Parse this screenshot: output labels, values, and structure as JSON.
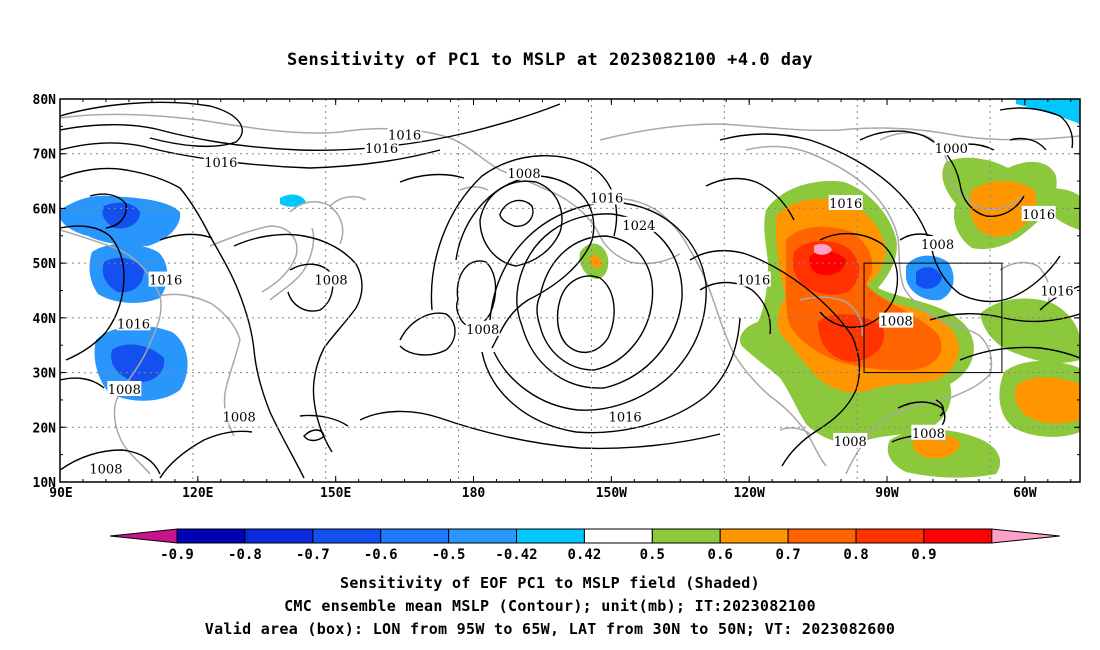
{
  "title": "Sensitivity of PC1 to MSLP at 2023082100 +4.0 day",
  "map": {
    "lon_labels": [
      "90E",
      "120E",
      "150E",
      "180",
      "150W",
      "120W",
      "90W",
      "60W"
    ],
    "lat_labels": [
      "80N",
      "70N",
      "60N",
      "50N",
      "40N",
      "30N",
      "20N",
      "10N"
    ],
    "extent": {
      "lon_min": 90,
      "lon_max": 312,
      "lat_min": 10,
      "lat_max": 80
    },
    "valid_box": {
      "lon_min": 265,
      "lon_max": 295,
      "lat_min": 30,
      "lat_max": 50
    },
    "contour_labels": [
      {
        "text": "1016",
        "lon": 165,
        "lat": 73.5
      },
      {
        "text": "1016",
        "lon": 160,
        "lat": 71.0
      },
      {
        "text": "1016",
        "lon": 125,
        "lat": 68.5
      },
      {
        "text": "1008",
        "lon": 191,
        "lat": 66.5
      },
      {
        "text": "1016",
        "lon": 209,
        "lat": 62.0
      },
      {
        "text": "1024",
        "lon": 216,
        "lat": 57.0
      },
      {
        "text": "1016",
        "lon": 113,
        "lat": 47.0
      },
      {
        "text": "1008",
        "lon": 149,
        "lat": 47.0
      },
      {
        "text": "1016",
        "lon": 241,
        "lat": 47.0
      },
      {
        "text": "1016",
        "lon": 261,
        "lat": 61.0
      },
      {
        "text": "1008",
        "lon": 281,
        "lat": 53.5
      },
      {
        "text": "1000",
        "lon": 284,
        "lat": 71.0
      },
      {
        "text": "1016",
        "lon": 303,
        "lat": 59.0
      },
      {
        "text": "1016",
        "lon": 106,
        "lat": 39.0
      },
      {
        "text": "1008",
        "lon": 182,
        "lat": 38.0
      },
      {
        "text": "1008",
        "lon": 272,
        "lat": 39.5
      },
      {
        "text": "1016",
        "lon": 307,
        "lat": 45.0
      },
      {
        "text": "1008",
        "lon": 104,
        "lat": 27.0
      },
      {
        "text": "1008",
        "lon": 129,
        "lat": 22.0
      },
      {
        "text": "1016",
        "lon": 213,
        "lat": 22.0
      },
      {
        "text": "1008",
        "lon": 262,
        "lat": 17.5
      },
      {
        "text": "1008",
        "lon": 279,
        "lat": 19.0
      },
      {
        "text": "1008",
        "lon": 100,
        "lat": 12.5
      }
    ]
  },
  "colorbar": {
    "labels": [
      "-0.9",
      "-0.8",
      "-0.7",
      "-0.6",
      "-0.5",
      "-0.42",
      "0.42",
      "0.5",
      "0.6",
      "0.7",
      "0.8",
      "0.9"
    ],
    "colors": [
      "#0000b4",
      "#0a28dc",
      "#1450f0",
      "#1e78fa",
      "#2896fa",
      "#00c8ff",
      "#ffffff",
      "#8cc83c",
      "#ff9600",
      "#ff6400",
      "#ff3200",
      "#ff0000"
    ],
    "low_extend_color": "#c8148c",
    "high_extend_color": "#ffa0c8"
  },
  "captions": [
    "Sensitivity of EOF PC1 to MSLP field (Shaded)",
    "CMC ensemble mean MSLP (Contour); unit(mb); IT:2023082100",
    "Valid area (box): LON from 95W to 65W, LAT from 30N to 50N; VT: 2023082600"
  ]
}
